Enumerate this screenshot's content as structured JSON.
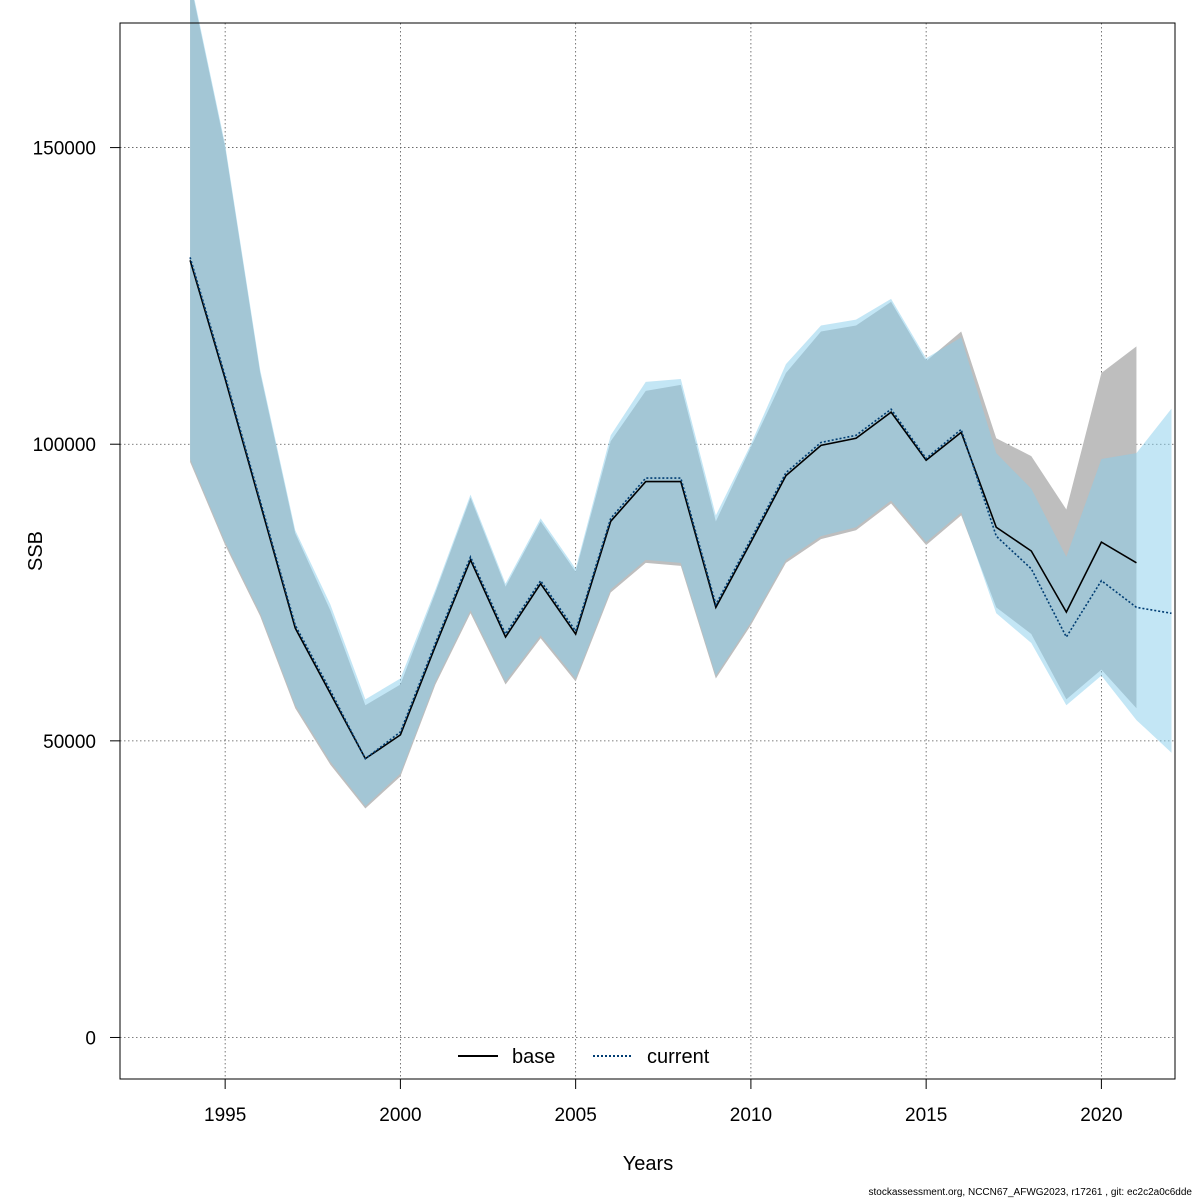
{
  "chart_data": {
    "type": "line",
    "xlabel": "Years",
    "ylabel": "SSB",
    "xlim": [
      1992.0,
      2022.1
    ],
    "ylim": [
      -7000,
      171000
    ],
    "xticks": [
      1995,
      2000,
      2005,
      2010,
      2015,
      2020
    ],
    "yticks": [
      0,
      50000,
      100000,
      150000
    ],
    "grid": true,
    "legend_position": "bottom-center",
    "series": [
      {
        "name": "base",
        "color": "#000000",
        "band_color": "#bebebe",
        "linestyle": "solid",
        "x": [
          1994,
          1995,
          1996,
          1997,
          1998,
          1999,
          2000,
          2001,
          2002,
          2003,
          2004,
          2005,
          2006,
          2007,
          2008,
          2009,
          2010,
          2011,
          2012,
          2013,
          2014,
          2015,
          2016,
          2017,
          2018,
          2019,
          2020,
          2021
        ],
        "y": [
          131000,
          111000,
          90000,
          69000,
          58000,
          47000,
          51000,
          66000,
          80500,
          67500,
          76500,
          68000,
          87000,
          93700,
          93700,
          72500,
          83500,
          94700,
          99800,
          101000,
          105400,
          97300,
          102000,
          86000,
          82000,
          71700,
          83500,
          80000
        ],
        "lower": [
          97000,
          83000,
          71000,
          55500,
          46000,
          38600,
          44000,
          59500,
          71500,
          59500,
          67300,
          60000,
          75000,
          80000,
          79500,
          60500,
          69500,
          80000,
          84000,
          85500,
          90000,
          83000,
          88000,
          72500,
          68000,
          57000,
          62000,
          55500
        ],
        "upper": [
          178000,
          150000,
          112000,
          85000,
          72000,
          56000,
          59500,
          75000,
          91000,
          76000,
          87000,
          78500,
          100500,
          109000,
          110000,
          87000,
          99500,
          112000,
          119000,
          120000,
          124000,
          114000,
          119000,
          101000,
          98000,
          89000,
          112000,
          116500
        ]
      },
      {
        "name": "current",
        "color": "#003d73",
        "band_color": "#87ceeb",
        "linestyle": "dotted",
        "x": [
          1994,
          1995,
          1996,
          1997,
          1998,
          1999,
          2000,
          2001,
          2002,
          2003,
          2004,
          2005,
          2006,
          2007,
          2008,
          2009,
          2010,
          2011,
          2012,
          2013,
          2014,
          2015,
          2016,
          2017,
          2018,
          2019,
          2020,
          2021,
          2022
        ],
        "y": [
          131500,
          111500,
          90500,
          69500,
          58500,
          47000,
          51500,
          66500,
          81000,
          68000,
          77000,
          68500,
          87500,
          94300,
          94300,
          73000,
          84000,
          95200,
          100300,
          101500,
          105900,
          97600,
          102500,
          84500,
          79000,
          67500,
          77000,
          72500,
          71500
        ],
        "lower": [
          97500,
          83500,
          71500,
          56000,
          46500,
          39000,
          44500,
          60000,
          72000,
          60000,
          67800,
          60500,
          75500,
          80500,
          80000,
          61000,
          70000,
          80500,
          84500,
          86000,
          90500,
          83500,
          88500,
          71500,
          66500,
          56000,
          61000,
          53500,
          48000
        ],
        "upper": [
          178500,
          150500,
          112500,
          85500,
          73000,
          57000,
          60500,
          75500,
          91500,
          76500,
          87500,
          79000,
          101500,
          110500,
          111000,
          88000,
          100000,
          113500,
          120000,
          121000,
          124500,
          114500,
          118000,
          98500,
          92500,
          81000,
          97500,
          98500,
          106000
        ]
      }
    ]
  },
  "footer_note": "stockassessment.org, NCCN67_AFWG2023, r17261 , git: ec2c2a0c6dde"
}
